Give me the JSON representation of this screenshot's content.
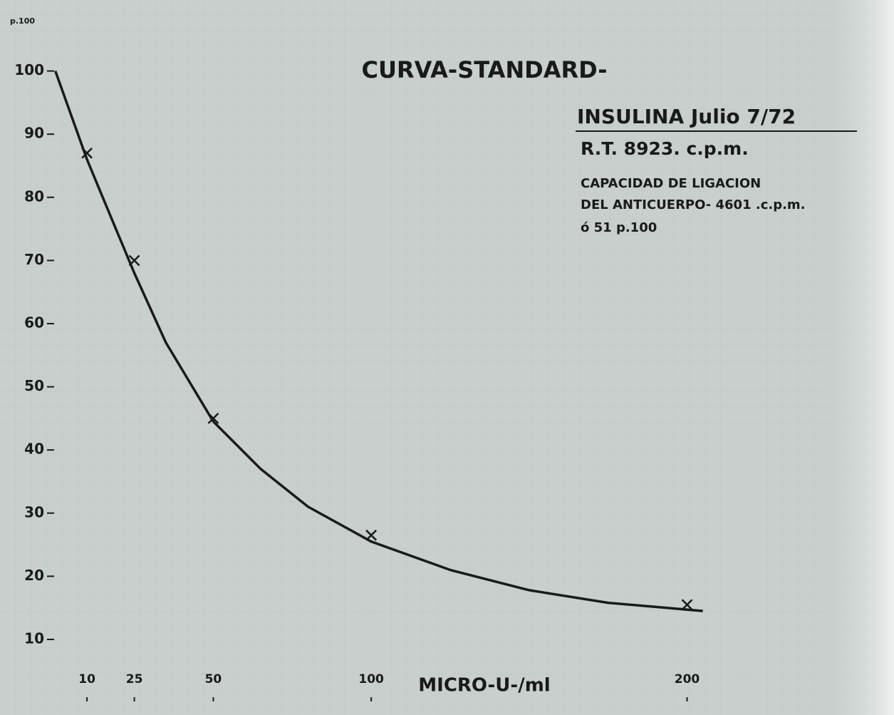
{
  "chart_data": {
    "type": "scatter",
    "title": "CURVA-STANDARD-",
    "ylabel": "p.100",
    "xlabel": "MICRO-U-/ml",
    "annotations": [
      "INSULINA Julio 7/72",
      "R.T. 8923. c.p.m.",
      "CAPACIDAD DE LIGACION",
      "DEL ANTICUERPO- 4601 .c.p.m.",
      "ó 51 p.100"
    ],
    "xlim": [
      -4,
      208
    ],
    "ylim": [
      0,
      110
    ],
    "xticks": [
      10,
      25,
      50,
      100,
      200
    ],
    "yticks": [
      10,
      20,
      30,
      40,
      50,
      60,
      70,
      80,
      90,
      100
    ],
    "series": [
      {
        "color": "#1a1a1a",
        "marker": "x",
        "x": [
          10,
          25,
          50,
          100,
          200
        ],
        "values": [
          87,
          70,
          45,
          26.5,
          15.5
        ]
      },
      {
        "color": "#1a1a1a",
        "marker": "line",
        "x": [
          0,
          5,
          10,
          15,
          20,
          25,
          35,
          50,
          65,
          80,
          100,
          125,
          150,
          175,
          205
        ],
        "values": [
          100,
          93,
          86,
          80,
          74,
          68,
          57,
          44.5,
          37,
          31,
          25.5,
          21,
          17.8,
          15.8,
          14.5
        ]
      }
    ]
  }
}
